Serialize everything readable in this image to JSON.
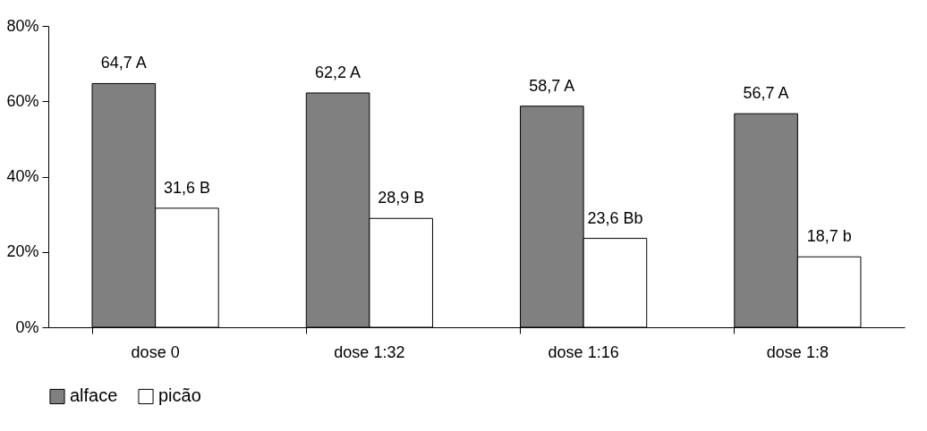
{
  "chart_data": {
    "type": "bar",
    "categories": [
      "dose 0",
      "dose 1:32",
      "dose 1:16",
      "dose 1:8"
    ],
    "series": [
      {
        "name": "alface",
        "color": "#808080",
        "values": [
          64.7,
          62.2,
          58.7,
          56.7
        ],
        "value_labels": [
          "64,7 A",
          "62,2 A",
          "58,7 A",
          "56,7 A"
        ]
      },
      {
        "name": "picão",
        "color": "#ffffff",
        "values": [
          31.6,
          28.9,
          23.6,
          18.7
        ],
        "value_labels": [
          "31,6 B",
          "28,9 B",
          "23,6 Bb",
          "18,7 b"
        ]
      }
    ],
    "ylim": [
      0,
      80
    ],
    "yticks": [
      {
        "value": 0,
        "label": "0%"
      },
      {
        "value": 20,
        "label": "20%"
      },
      {
        "value": 40,
        "label": "40%"
      },
      {
        "value": 60,
        "label": "60%"
      },
      {
        "value": 80,
        "label": "80%"
      }
    ],
    "grid": false,
    "legend": "bottom"
  }
}
